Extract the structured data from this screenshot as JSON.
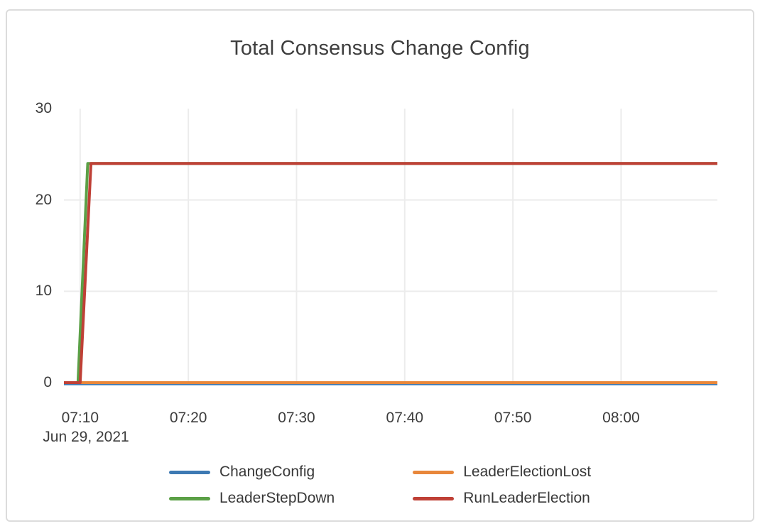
{
  "chart_data": {
    "type": "line",
    "title": "Total Consensus Change Config",
    "x_date_label": "Jun 29, 2021",
    "x_ticks": [
      "07:10",
      "07:20",
      "07:30",
      "07:40",
      "07:50",
      "08:00"
    ],
    "y_ticks": [
      0,
      10,
      20,
      30
    ],
    "ylim": [
      0,
      30
    ],
    "xlim": [
      "07:08.5",
      "08:08.9"
    ],
    "grid": true,
    "legend_position": "bottom",
    "colors": {
      "gridline": "#ececec",
      "tick_text": "#3c3c3c",
      "title_text": "#3e3e3e",
      "card_border": "#dcdcdc"
    },
    "series": [
      {
        "name": "ChangeConfig",
        "color": "#3d79b3",
        "points": [
          [
            "07:08.5",
            0
          ],
          [
            "08:08.9",
            0
          ]
        ]
      },
      {
        "name": "LeaderElectionLost",
        "color": "#e8873b",
        "points": [
          [
            "07:08.5",
            0
          ],
          [
            "08:08.9",
            0
          ]
        ]
      },
      {
        "name": "LeaderStepDown",
        "color": "#5ba046",
        "points": [
          [
            "07:08.5",
            0
          ],
          [
            "07:09.8",
            0
          ],
          [
            "07:10.7",
            24
          ],
          [
            "08:08.9",
            24
          ]
        ]
      },
      {
        "name": "RunLeaderElection",
        "color": "#bf4036",
        "points": [
          [
            "07:08.5",
            0
          ],
          [
            "07:10.0",
            0
          ],
          [
            "07:11.0",
            24
          ],
          [
            "08:08.9",
            24
          ]
        ]
      }
    ]
  }
}
